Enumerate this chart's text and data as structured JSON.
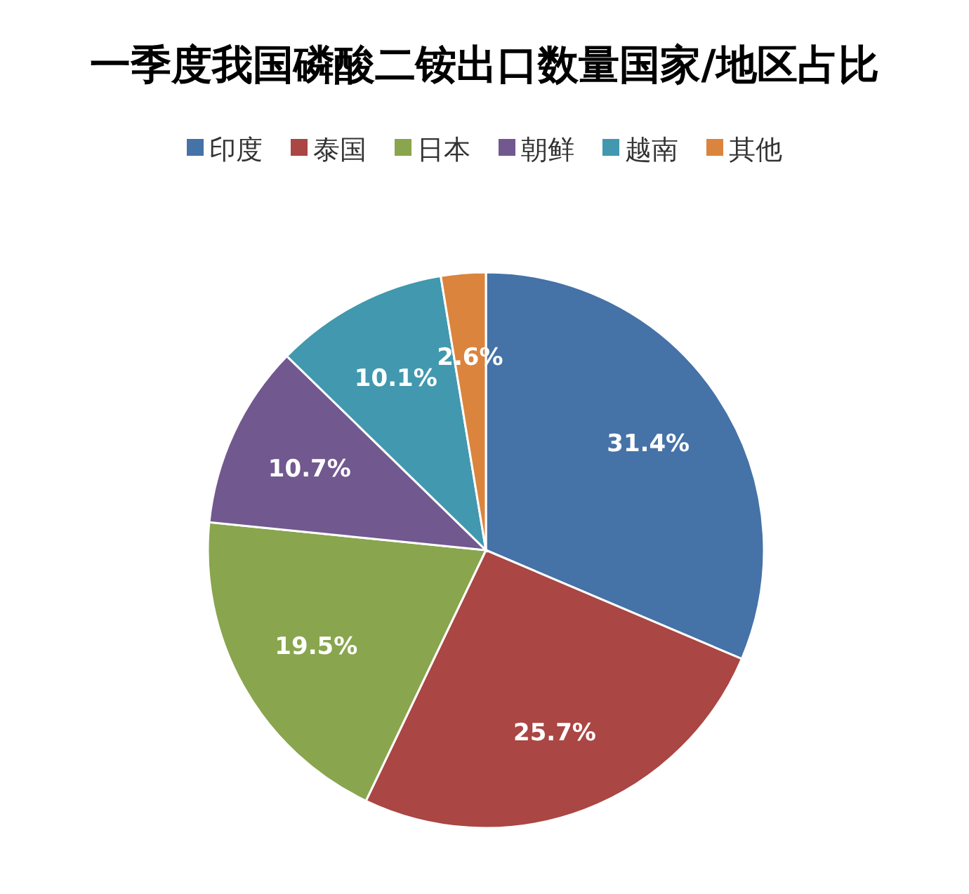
{
  "chart_data": {
    "type": "pie",
    "title": "一季度我国磷酸二铵出口数量国家/地区占比",
    "categories": [
      "印度",
      "泰国",
      "日本",
      "朝鲜",
      "越南",
      "其他"
    ],
    "values": [
      31.4,
      25.7,
      19.5,
      10.7,
      10.1,
      2.6
    ],
    "colors": [
      "#4572a7",
      "#aa4643",
      "#89a54e",
      "#71588f",
      "#4198af",
      "#db843d"
    ],
    "value_labels": [
      "31.4%",
      "25.7%",
      "19.5%",
      "10.7%",
      "10.1%",
      "2.6%"
    ],
    "legend": "top"
  }
}
